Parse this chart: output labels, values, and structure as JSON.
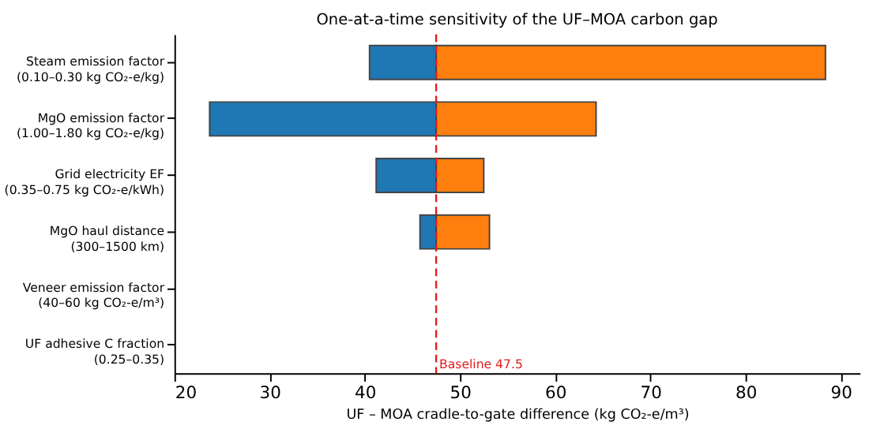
{
  "chart_data": {
    "type": "bar",
    "orientation": "horizontal",
    "title": "One-at-a-time sensitivity of the UF–MOA carbon gap",
    "xlabel": "UF – MOA cradle-to-gate difference (kg CO₂-e/m³)",
    "categories": [
      "Steam emission factor\n(0.10–0.30 kg CO₂-e/kg)",
      "MgO emission factor\n(1.00–1.80 kg CO₂-e/kg)",
      "Grid electricity EF\n(0.35–0.75 kg CO₂-e/kWh)",
      "MgO haul distance\n(300–1500 km)",
      "Veneer emission factor\n(40–60 kg CO₂-e/m³)",
      "UF adhesive C fraction\n(0.25–0.35)"
    ],
    "series": [
      {
        "color": "#1f77b4",
        "base": [
          47.5,
          47.5,
          47.5,
          47.5,
          null,
          null
        ],
        "values": [
          -7.0,
          -23.8,
          -6.3,
          -1.7,
          null,
          null
        ]
      },
      {
        "color": "#ff7f0e",
        "base": [
          47.5,
          47.5,
          47.5,
          47.5,
          null,
          null
        ],
        "values": [
          40.9,
          16.8,
          5.0,
          5.6,
          null,
          null
        ]
      }
    ],
    "xlim": [
      20,
      92
    ],
    "xticks": [
      20,
      30,
      40,
      50,
      60,
      70,
      80,
      90
    ],
    "ref_lines": [
      {
        "axis": "x",
        "value": 47.5,
        "label": "Baseline 47.5",
        "color": "#e41a1c",
        "line_style": "dashed"
      }
    ],
    "grid": false
  }
}
